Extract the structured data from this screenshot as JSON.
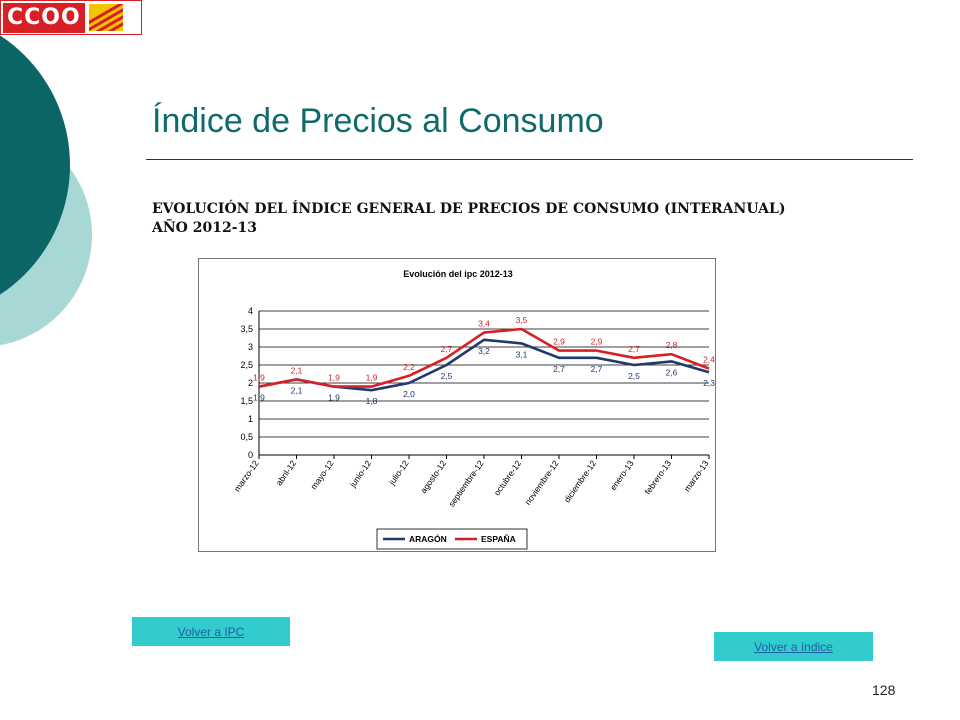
{
  "logo": {
    "text": "CCOO"
  },
  "slide": {
    "title": "Índice de Precios al Consumo",
    "page_number": "128"
  },
  "heading": {
    "line1": "EVOLUCIÓN DEL ÍNDICE GENERAL DE PRECIOS DE CONSUMO (INTERANUAL)",
    "line2": "AÑO 2012-13"
  },
  "buttons": {
    "volver_ipc": "Volver a IPC",
    "volver_indice": "Volver a índice"
  },
  "colors": {
    "title": "#0f6b6b",
    "aragon": "#1f3a6b",
    "espana": "#d81f26",
    "button": "#33cccc",
    "deco_dark": "#0b6565",
    "deco_light": "#a8d8d6"
  },
  "chart_data": {
    "type": "line",
    "title": "Evolución del ipc 2012-13",
    "categories": [
      "marzo-12",
      "abril-12",
      "mayo-12",
      "junio-12",
      "julio-12",
      "agosto-12",
      "septiembre-12",
      "octubre-12",
      "noviembre-12",
      "diciembre-12",
      "enero-13",
      "febrero-13",
      "marzo-13"
    ],
    "series": [
      {
        "name": "ARAGÓN",
        "values": [
          1.9,
          2.1,
          1.9,
          1.8,
          2.0,
          2.5,
          3.2,
          3.1,
          2.7,
          2.7,
          2.5,
          2.6,
          2.3
        ],
        "labels": [
          "1,9",
          "2,1",
          "1,9",
          "1,8",
          "2,0",
          "2,5",
          "3,2",
          "3,1",
          "2,7",
          "2,7",
          "2,5",
          "2,6",
          "2,3"
        ]
      },
      {
        "name": "ESPAÑA",
        "values": [
          1.9,
          2.1,
          1.9,
          1.9,
          2.2,
          2.7,
          3.4,
          3.5,
          2.9,
          2.9,
          2.7,
          2.8,
          2.4
        ],
        "labels": [
          "1,9",
          "2,1",
          "1,9",
          "1,9",
          "2,2",
          "2,7",
          "3,4",
          "3,5",
          "2,9",
          "2,9",
          "2,7",
          "2,8",
          "2,4"
        ]
      }
    ],
    "y_ticks": [
      "0",
      "0,5",
      "1",
      "1,5",
      "2",
      "2,5",
      "3",
      "3,5",
      "4"
    ],
    "ylim": [
      0,
      4
    ],
    "grid": true,
    "legend": "bottom"
  }
}
